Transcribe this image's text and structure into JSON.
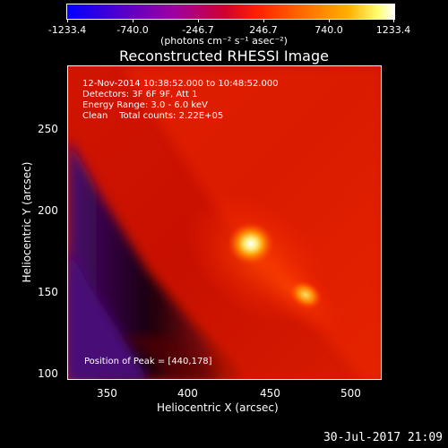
{
  "colorbar": {
    "tick_labels": [
      "-1233.4",
      "-740.0",
      "-246.7",
      "246.7",
      "740.0",
      "1233.4"
    ],
    "units": "(photons cm⁻² s⁻¹ asec⁻²)",
    "min": -1233.4,
    "max": 1233.4
  },
  "title": "Reconstructed RHESSI Image",
  "annotation": {
    "line1": "12-Nov-2014 10:38:52.000 to 10:48:52.000",
    "line2": "Detectors: 3F 6F 9F, Att 1",
    "line3": "Energy Range: 3.0 - 6.0 keV",
    "line4": "Clean    Total counts: 2.22E+05",
    "peak": "Position of Peak = [440,178]"
  },
  "axes": {
    "xlabel": "Heliocentric X (arcsec)",
    "ylabel": "Heliocentric Y (arcsec)",
    "x_ticks": [
      "350",
      "400",
      "450",
      "500"
    ],
    "y_ticks": [
      "100",
      "150",
      "200",
      "250"
    ],
    "x_range": [
      326,
      518
    ],
    "y_range": [
      97,
      289
    ]
  },
  "footer": {
    "date": "30-Jul-2017 21:09"
  }
}
